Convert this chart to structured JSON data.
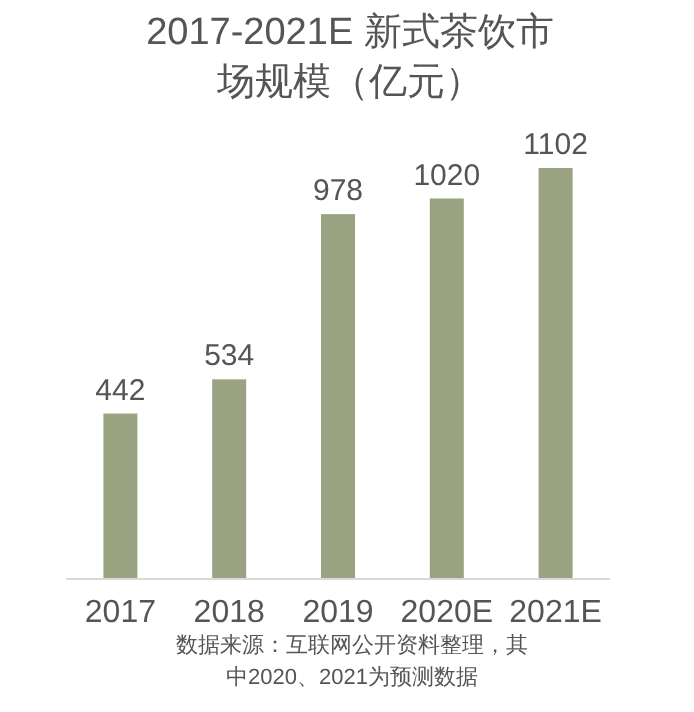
{
  "chart_data": {
    "type": "bar",
    "title": "2017-2021E 新式茶饮市场规模（亿元）",
    "categories": [
      "2017",
      "2018",
      "2019",
      "2020E",
      "2021E"
    ],
    "values": [
      442,
      534,
      978,
      1020,
      1102
    ],
    "color": "#9aa381",
    "data_labels": true,
    "annotations": [
      "数据来源：互联网公开资料整理，其中2020、2021为预测数据"
    ]
  }
}
